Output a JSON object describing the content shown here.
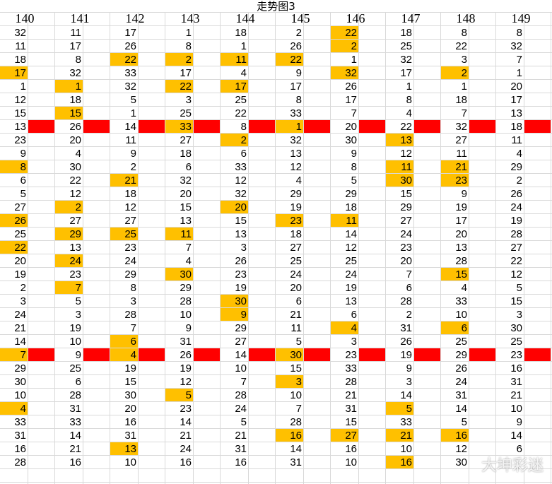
{
  "title": "走势图3",
  "watermark": "大坤彩迷",
  "table": {
    "header": [
      "140",
      "141",
      "142",
      "143",
      "144",
      "145",
      "146",
      "147",
      "148",
      "149"
    ],
    "rows": [
      [
        32,
        11,
        17,
        1,
        18,
        2,
        22,
        18,
        8,
        8
      ],
      [
        11,
        17,
        26,
        8,
        1,
        26,
        2,
        25,
        22,
        32
      ],
      [
        18,
        8,
        22,
        2,
        11,
        22,
        1,
        32,
        3,
        7
      ],
      [
        17,
        32,
        33,
        17,
        4,
        9,
        32,
        17,
        2,
        1
      ],
      [
        1,
        1,
        32,
        22,
        17,
        17,
        26,
        1,
        1,
        20
      ],
      [
        12,
        18,
        5,
        3,
        25,
        8,
        17,
        8,
        18,
        17
      ],
      [
        15,
        15,
        1,
        25,
        22,
        33,
        7,
        4,
        7,
        13
      ],
      [
        13,
        26,
        14,
        33,
        8,
        1,
        20,
        22,
        32,
        18
      ],
      [
        23,
        20,
        11,
        27,
        2,
        32,
        30,
        13,
        27,
        11
      ],
      [
        9,
        4,
        9,
        18,
        6,
        13,
        9,
        12,
        11,
        4
      ],
      [
        8,
        30,
        2,
        6,
        33,
        12,
        8,
        11,
        21,
        29
      ],
      [
        6,
        22,
        21,
        32,
        12,
        4,
        5,
        30,
        23,
        2
      ],
      [
        5,
        12,
        18,
        20,
        32,
        29,
        29,
        15,
        9,
        26
      ],
      [
        27,
        2,
        12,
        15,
        20,
        19,
        18,
        29,
        19,
        24
      ],
      [
        26,
        27,
        27,
        13,
        15,
        23,
        11,
        27,
        17,
        19
      ],
      [
        25,
        29,
        25,
        11,
        13,
        18,
        14,
        24,
        20,
        28
      ],
      [
        22,
        13,
        23,
        7,
        3,
        27,
        12,
        23,
        13,
        27
      ],
      [
        20,
        24,
        24,
        4,
        26,
        25,
        25,
        20,
        28,
        22
      ],
      [
        19,
        23,
        29,
        30,
        23,
        24,
        24,
        7,
        15,
        12
      ],
      [
        2,
        7,
        8,
        29,
        19,
        20,
        19,
        6,
        4,
        5
      ],
      [
        3,
        5,
        3,
        28,
        30,
        6,
        13,
        28,
        33,
        15
      ],
      [
        24,
        3,
        28,
        10,
        9,
        21,
        6,
        2,
        10,
        3
      ],
      [
        21,
        19,
        7,
        9,
        29,
        11,
        4,
        31,
        6,
        30
      ],
      [
        14,
        10,
        6,
        31,
        27,
        5,
        3,
        26,
        25,
        25
      ],
      [
        7,
        9,
        4,
        26,
        14,
        30,
        23,
        19,
        29,
        23
      ],
      [
        29,
        25,
        19,
        19,
        10,
        15,
        33,
        9,
        26,
        16
      ],
      [
        30,
        6,
        15,
        12,
        7,
        3,
        28,
        3,
        24,
        31
      ],
      [
        10,
        28,
        30,
        5,
        28,
        10,
        21,
        14,
        31,
        21
      ],
      [
        4,
        31,
        20,
        23,
        24,
        7,
        31,
        5,
        14,
        10
      ],
      [
        33,
        33,
        16,
        14,
        5,
        28,
        15,
        33,
        5,
        9
      ],
      [
        31,
        14,
        31,
        21,
        21,
        16,
        27,
        21,
        16,
        14
      ],
      [
        16,
        21,
        13,
        24,
        31,
        14,
        16,
        10,
        12,
        6
      ],
      [
        28,
        16,
        10,
        16,
        16,
        31,
        10,
        16,
        30,
        null
      ]
    ],
    "highlight": [
      [
        0,
        6
      ],
      [
        1,
        6
      ],
      [
        2,
        2
      ],
      [
        2,
        3
      ],
      [
        2,
        4
      ],
      [
        2,
        5
      ],
      [
        3,
        0
      ],
      [
        3,
        6
      ],
      [
        3,
        8
      ],
      [
        4,
        1
      ],
      [
        4,
        3
      ],
      [
        4,
        4
      ],
      [
        6,
        1
      ],
      [
        7,
        3
      ],
      [
        7,
        5
      ],
      [
        8,
        4
      ],
      [
        8,
        7
      ],
      [
        10,
        0
      ],
      [
        10,
        7
      ],
      [
        10,
        8
      ],
      [
        11,
        2
      ],
      [
        11,
        7
      ],
      [
        11,
        8
      ],
      [
        13,
        1
      ],
      [
        13,
        4
      ],
      [
        14,
        0
      ],
      [
        14,
        5
      ],
      [
        14,
        6
      ],
      [
        15,
        1
      ],
      [
        15,
        2
      ],
      [
        15,
        3
      ],
      [
        16,
        0
      ],
      [
        17,
        1
      ],
      [
        18,
        3
      ],
      [
        18,
        8
      ],
      [
        19,
        1
      ],
      [
        20,
        4
      ],
      [
        21,
        4
      ],
      [
        22,
        6
      ],
      [
        22,
        8
      ],
      [
        23,
        2
      ],
      [
        24,
        0
      ],
      [
        24,
        2
      ],
      [
        24,
        5
      ],
      [
        26,
        5
      ],
      [
        27,
        3
      ],
      [
        28,
        0
      ],
      [
        28,
        7
      ],
      [
        30,
        5
      ],
      [
        30,
        6
      ],
      [
        30,
        7
      ],
      [
        30,
        8
      ],
      [
        31,
        2
      ],
      [
        32,
        7
      ]
    ],
    "highlight_color": "#ffc000",
    "red_rows": [
      7,
      24
    ],
    "red_color": "#ff0000"
  }
}
